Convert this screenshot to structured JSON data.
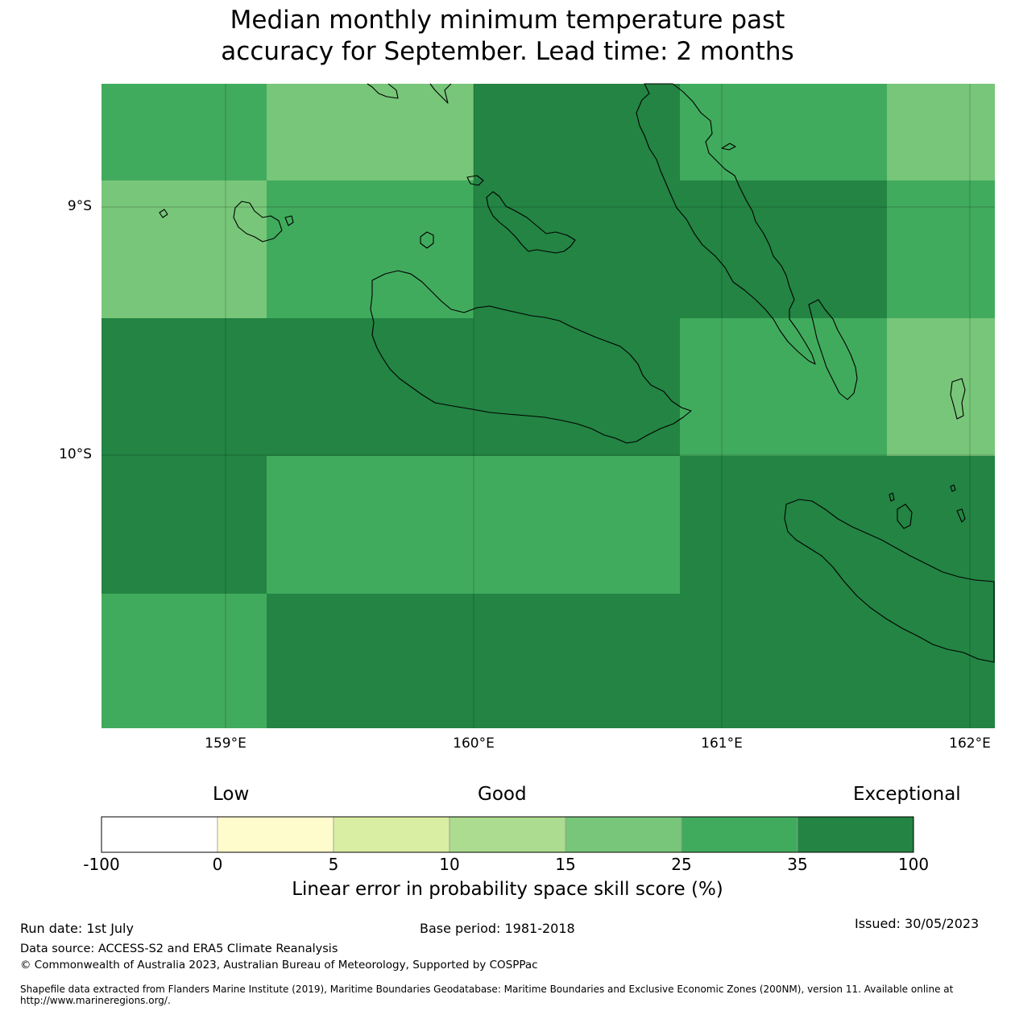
{
  "title": {
    "line1": "Median monthly minimum temperature past",
    "line2": "accuracy for September. Lead time: 2 months"
  },
  "map": {
    "lat_labels": [
      "9°S",
      "10°S"
    ],
    "lon_labels": [
      "159°E",
      "160°E",
      "161°E",
      "162°E"
    ],
    "cells": [
      {
        "row": 0,
        "col": 0,
        "level": "25-35"
      },
      {
        "row": 0,
        "col": 1,
        "level": "15-25"
      },
      {
        "row": 0,
        "col": 2,
        "level": "35-100"
      },
      {
        "row": 0,
        "col": 3,
        "level": "25-35"
      },
      {
        "row": 0,
        "col": 4,
        "level": "15-25"
      },
      {
        "row": 1,
        "col": 0,
        "level": "15-25"
      },
      {
        "row": 1,
        "col": 1,
        "level": "25-35"
      },
      {
        "row": 1,
        "col": 2,
        "level": "35-100"
      },
      {
        "row": 1,
        "col": 3,
        "level": "35-100"
      },
      {
        "row": 1,
        "col": 4,
        "level": "25-35"
      },
      {
        "row": 2,
        "col": 0,
        "level": "35-100"
      },
      {
        "row": 2,
        "col": 1,
        "level": "35-100"
      },
      {
        "row": 2,
        "col": 2,
        "level": "35-100"
      },
      {
        "row": 2,
        "col": 3,
        "level": "25-35"
      },
      {
        "row": 2,
        "col": 4,
        "level": "15-25"
      },
      {
        "row": 3,
        "col": 0,
        "level": "35-100"
      },
      {
        "row": 3,
        "col": 1,
        "level": "25-35"
      },
      {
        "row": 3,
        "col": 2,
        "level": "25-35"
      },
      {
        "row": 3,
        "col": 3,
        "level": "35-100"
      },
      {
        "row": 3,
        "col": 4,
        "level": "35-100"
      },
      {
        "row": 4,
        "col": 0,
        "level": "25-35"
      },
      {
        "row": 4,
        "col": 1,
        "level": "35-100"
      },
      {
        "row": 4,
        "col": 2,
        "level": "35-100"
      },
      {
        "row": 4,
        "col": 3,
        "level": "35-100"
      },
      {
        "row": 4,
        "col": 4,
        "level": "35-100"
      }
    ]
  },
  "colorbar": {
    "categories": [
      "Low",
      "Good",
      "Exceptional"
    ],
    "ticks": [
      "-100",
      "0",
      "5",
      "10",
      "15",
      "25",
      "35",
      "100"
    ],
    "colors": [
      "#ffffff",
      "#fefccc",
      "#d9eea3",
      "#acdc8f",
      "#78c679",
      "#41ab5d",
      "#238443"
    ],
    "title": "Linear error in probability space skill score (%)"
  },
  "level_colors": {
    "15-25": "#78c679",
    "25-35": "#41ab5d",
    "35-100": "#238443"
  },
  "footer": {
    "run_date": "Run date: 1st July",
    "base_period": "Base period: 1981-2018",
    "issued": "Issued: 30/05/2023",
    "data_source": "Data source: ACCESS-S2 and ERA5 Climate Reanalysis",
    "copyright": "© Commonwealth of Australia 2023, Australian Bureau of Meteorology, Supported by COSPPac",
    "shapefile": "Shapefile data extracted from Flanders Marine Institute (2019), Maritime Boundaries Geodatabase: Maritime Boundaries and Exclusive Economic Zones (200NM), version 11. Available online at http://www.marineregions.org/."
  }
}
